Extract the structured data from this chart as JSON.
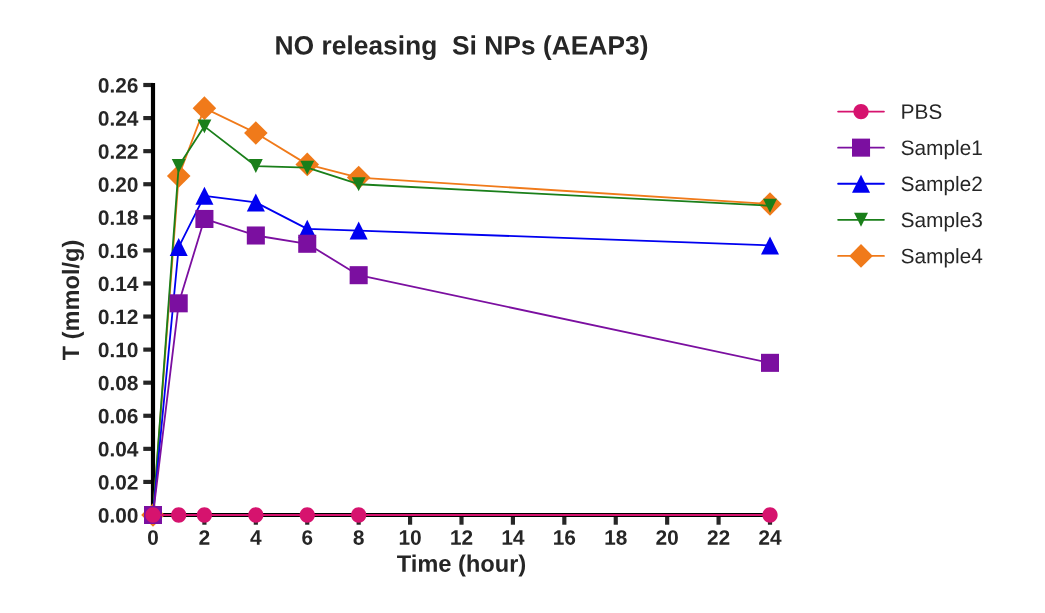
{
  "chart_data": {
    "type": "line",
    "title": "NO releasing  Si NPs (AEAP3)",
    "xlabel": "Time (hour)",
    "ylabel": "T (mmol/g)",
    "x": [
      0,
      1,
      2,
      4,
      6,
      8,
      24
    ],
    "series": [
      {
        "name": "PBS",
        "color": "#d6136e",
        "marker": "circle",
        "values": [
          0,
          0,
          0,
          0,
          0,
          0,
          0
        ]
      },
      {
        "name": "Sample1",
        "color": "#7b0fa0",
        "marker": "square",
        "values": [
          0,
          0.128,
          0.179,
          0.169,
          0.164,
          0.145,
          0.092
        ]
      },
      {
        "name": "Sample2",
        "color": "#0000f0",
        "marker": "triangle",
        "values": [
          0,
          0.162,
          0.193,
          0.189,
          0.173,
          0.172,
          0.163
        ]
      },
      {
        "name": "Sample3",
        "color": "#1a7f1a",
        "marker": "triangle_down",
        "values": [
          0,
          0.211,
          0.235,
          0.211,
          0.21,
          0.2,
          0.187
        ]
      },
      {
        "name": "Sample4",
        "color": "#f07a1a",
        "marker": "diamond",
        "values": [
          0,
          0.205,
          0.246,
          0.231,
          0.212,
          0.204,
          0.188
        ]
      }
    ],
    "xlim": [
      0,
      24
    ],
    "xticks": [
      0,
      2,
      4,
      6,
      8,
      10,
      12,
      14,
      16,
      18,
      20,
      22,
      24
    ],
    "ylim": [
      0,
      0.26
    ],
    "yticks": [
      {
        "value": 0,
        "label": "0.00"
      },
      {
        "value": 0.02,
        "label": "0.02"
      },
      {
        "value": 0.04,
        "label": "0.04"
      },
      {
        "value": 0.06,
        "label": "0.06"
      },
      {
        "value": 0.08,
        "label": "0.08"
      },
      {
        "value": 0.1,
        "label": "0.10"
      },
      {
        "value": 0.12,
        "label": "0.12"
      },
      {
        "value": 0.14,
        "label": "0.14"
      },
      {
        "value": 0.16,
        "label": "0.16"
      },
      {
        "value": 0.18,
        "label": "0.18"
      },
      {
        "value": 0.2,
        "label": "0.20"
      },
      {
        "value": 0.22,
        "label": "0.22"
      },
      {
        "value": 0.24,
        "label": "0.24"
      },
      {
        "value": 0.26,
        "label": "0.26"
      }
    ],
    "grid": false,
    "legend": "right",
    "line_style": "solid"
  }
}
